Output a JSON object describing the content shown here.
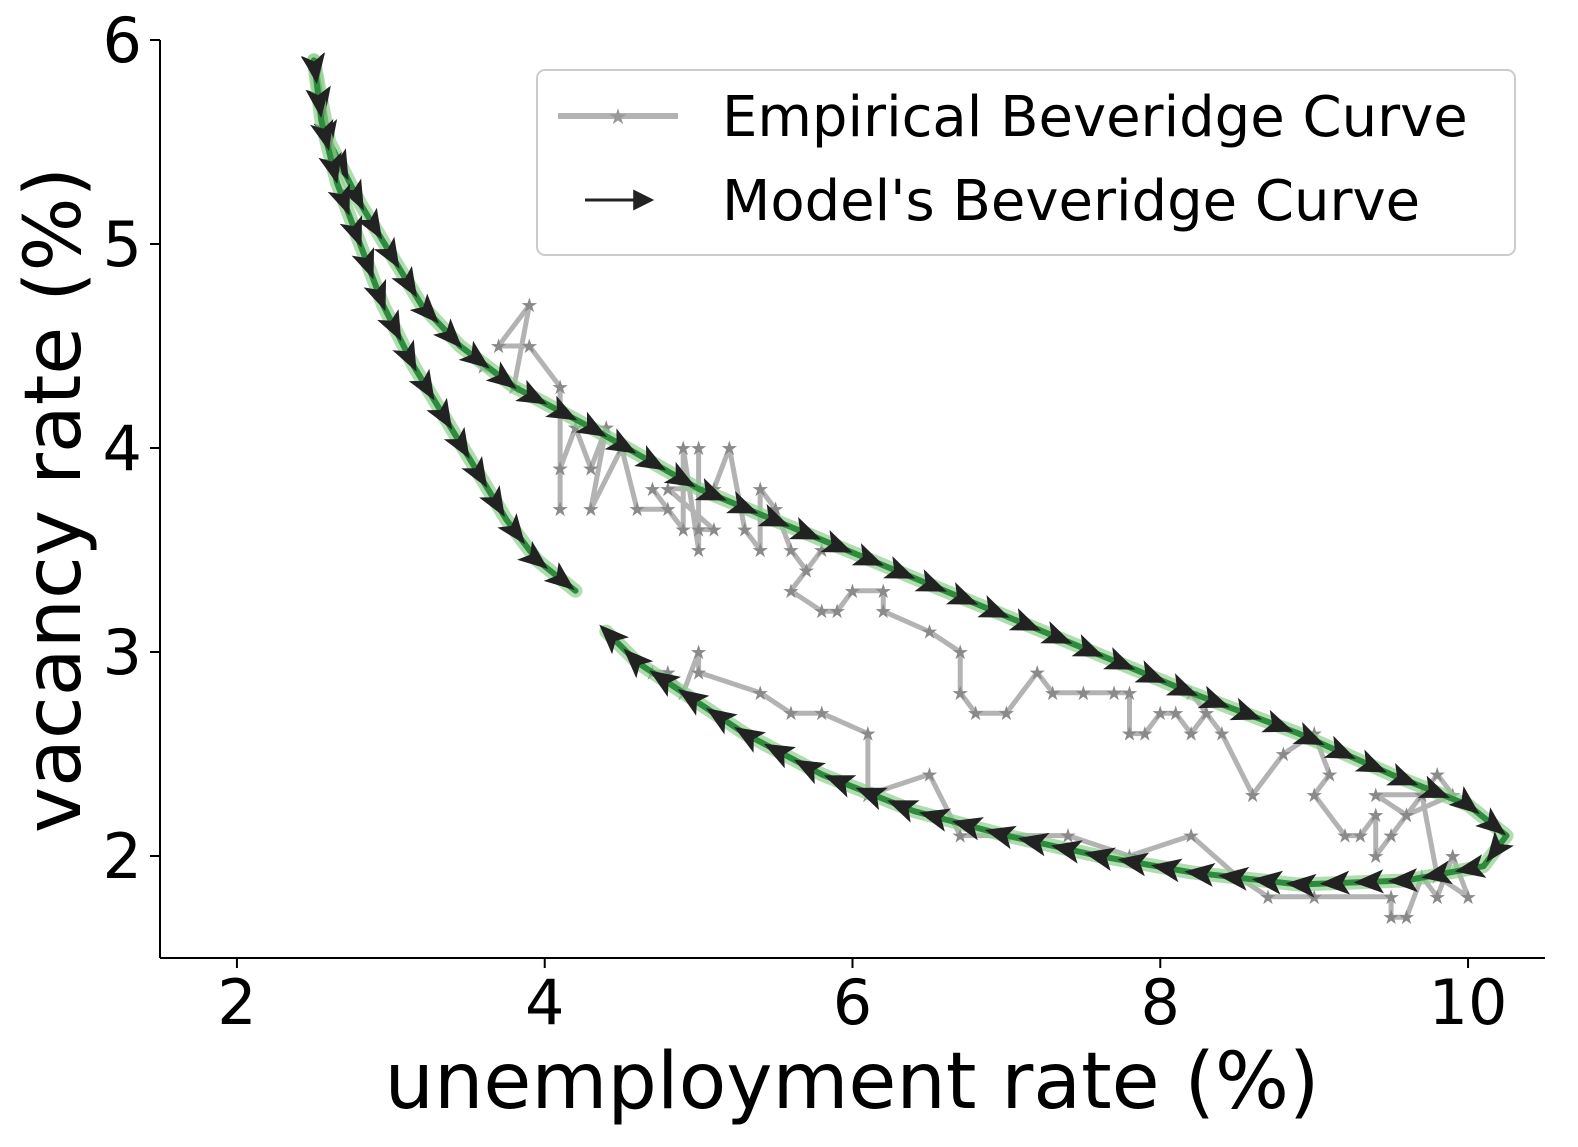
{
  "chart_data": {
    "type": "line",
    "title": "",
    "xlabel": "unemployment rate (%)",
    "ylabel": "vacancy rate (%)",
    "xlim": [
      1.5,
      10.5
    ],
    "ylim": [
      1.5,
      6.0
    ],
    "xticks": [
      2,
      4,
      6,
      8,
      10
    ],
    "yticks": [
      2,
      3,
      4,
      5,
      6
    ],
    "grid": false,
    "legend_position": "top-right",
    "colors": {
      "empirical": "#b3b3b3",
      "model_arrow": "#222222",
      "model_band": "#2e8b3e",
      "model_band_light": "#8fcf8f"
    },
    "series": [
      {
        "name": "Empirical Beveridge Curve",
        "style": "grey-line-star-markers",
        "points": [
          [
            3.6,
            4.4
          ],
          [
            3.8,
            4.3
          ],
          [
            3.9,
            4.7
          ],
          [
            3.7,
            4.5
          ],
          [
            3.9,
            4.5
          ],
          [
            4.1,
            4.3
          ],
          [
            4.1,
            3.7
          ],
          [
            4.1,
            3.9
          ],
          [
            4.2,
            4.1
          ],
          [
            4.3,
            3.9
          ],
          [
            4.4,
            4.1
          ],
          [
            4.3,
            3.7
          ],
          [
            4.5,
            4.0
          ],
          [
            4.6,
            3.7
          ],
          [
            4.8,
            3.7
          ],
          [
            4.7,
            3.8
          ],
          [
            4.9,
            3.6
          ],
          [
            4.9,
            4.0
          ],
          [
            5.0,
            3.5
          ],
          [
            5.0,
            4.0
          ],
          [
            5.0,
            3.6
          ],
          [
            5.1,
            3.6
          ],
          [
            4.8,
            3.8
          ],
          [
            5.1,
            3.8
          ],
          [
            5.2,
            4.0
          ],
          [
            5.3,
            3.6
          ],
          [
            5.4,
            3.5
          ],
          [
            5.4,
            3.8
          ],
          [
            5.5,
            3.7
          ],
          [
            5.6,
            3.5
          ],
          [
            5.7,
            3.4
          ],
          [
            5.8,
            3.5
          ],
          [
            5.6,
            3.3
          ],
          [
            5.8,
            3.2
          ],
          [
            5.9,
            3.2
          ],
          [
            6.0,
            3.3
          ],
          [
            6.2,
            3.3
          ],
          [
            6.2,
            3.2
          ],
          [
            6.5,
            3.1
          ],
          [
            6.7,
            3.0
          ],
          [
            6.7,
            2.8
          ],
          [
            6.8,
            2.7
          ],
          [
            7.0,
            2.7
          ],
          [
            7.2,
            2.9
          ],
          [
            7.3,
            2.8
          ],
          [
            7.5,
            2.8
          ],
          [
            7.7,
            2.8
          ],
          [
            7.8,
            2.8
          ],
          [
            7.8,
            2.6
          ],
          [
            7.9,
            2.6
          ],
          [
            8.0,
            2.7
          ],
          [
            8.1,
            2.7
          ],
          [
            8.2,
            2.6
          ],
          [
            8.3,
            2.7
          ],
          [
            8.2,
            2.8
          ],
          [
            8.4,
            2.6
          ],
          [
            8.6,
            2.3
          ],
          [
            8.8,
            2.5
          ],
          [
            9.0,
            2.6
          ],
          [
            9.1,
            2.4
          ],
          [
            9.0,
            2.3
          ],
          [
            9.2,
            2.1
          ],
          [
            9.3,
            2.1
          ],
          [
            9.4,
            2.2
          ],
          [
            9.4,
            2.0
          ],
          [
            9.5,
            2.1
          ],
          [
            9.6,
            2.2
          ],
          [
            9.8,
            2.4
          ],
          [
            9.9,
            2.3
          ],
          [
            9.6,
            2.2
          ],
          [
            9.4,
            2.3
          ],
          [
            9.7,
            2.3
          ],
          [
            9.8,
            1.9
          ],
          [
            10.0,
            1.8
          ],
          [
            9.9,
            2.0
          ],
          [
            9.8,
            1.8
          ],
          [
            9.7,
            1.9
          ],
          [
            9.6,
            1.7
          ],
          [
            9.5,
            1.7
          ],
          [
            9.5,
            1.8
          ],
          [
            9.0,
            1.8
          ],
          [
            8.7,
            1.8
          ],
          [
            8.5,
            1.9
          ],
          [
            8.2,
            2.1
          ],
          [
            7.8,
            2.0
          ],
          [
            7.4,
            2.1
          ],
          [
            7.0,
            2.1
          ],
          [
            6.7,
            2.1
          ],
          [
            6.5,
            2.4
          ],
          [
            6.1,
            2.3
          ],
          [
            6.1,
            2.6
          ],
          [
            5.8,
            2.7
          ],
          [
            5.6,
            2.7
          ],
          [
            5.4,
            2.8
          ],
          [
            5.0,
            2.9
          ],
          [
            5.0,
            3.0
          ],
          [
            4.9,
            2.8
          ],
          [
            4.8,
            2.9
          ],
          [
            4.7,
            2.9
          ]
        ]
      },
      {
        "name": "Model's Beveridge Curve",
        "style": "black-arrows-over-green-band",
        "segments": [
          [
            [
              2.5,
              5.9
            ],
            [
              2.6,
              5.5
            ],
            [
              2.8,
              5.2
            ],
            [
              3.0,
              4.95
            ],
            [
              3.2,
              4.7
            ],
            [
              3.45,
              4.5
            ],
            [
              3.8,
              4.3
            ],
            [
              4.3,
              4.1
            ],
            [
              5.0,
              3.8
            ],
            [
              5.8,
              3.55
            ],
            [
              6.6,
              3.3
            ],
            [
              7.4,
              3.05
            ],
            [
              8.2,
              2.8
            ],
            [
              8.9,
              2.6
            ],
            [
              9.5,
              2.4
            ],
            [
              10.0,
              2.25
            ],
            [
              10.25,
              2.1
            ],
            [
              10.1,
              1.95
            ],
            [
              9.6,
              1.88
            ],
            [
              8.9,
              1.86
            ],
            [
              8.2,
              1.92
            ],
            [
              7.6,
              2.0
            ],
            [
              7.0,
              2.1
            ],
            [
              6.4,
              2.22
            ],
            [
              5.8,
              2.4
            ],
            [
              5.3,
              2.6
            ],
            [
              4.9,
              2.8
            ],
            [
              4.6,
              2.95
            ],
            [
              4.4,
              3.1
            ]
          ],
          [
            [
              2.5,
              5.9
            ],
            [
              2.55,
              5.6
            ],
            [
              2.65,
              5.3
            ],
            [
              2.8,
              5.0
            ],
            [
              2.95,
              4.7
            ],
            [
              3.15,
              4.4
            ],
            [
              3.35,
              4.15
            ],
            [
              3.55,
              3.9
            ],
            [
              3.75,
              3.65
            ],
            [
              3.95,
              3.45
            ],
            [
              4.2,
              3.3
            ]
          ]
        ]
      }
    ]
  }
}
